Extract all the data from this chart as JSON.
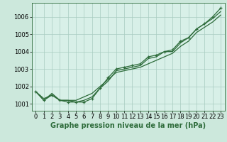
{
  "title": "Graphe pression niveau de la mer (hPa)",
  "background_color": "#cce8dc",
  "plot_bg_color": "#d8f0e8",
  "grid_color": "#a8ccc0",
  "line_color": "#2d6b3a",
  "xlim": [
    -0.5,
    23.5
  ],
  "ylim": [
    1000.6,
    1006.8
  ],
  "yticks": [
    1001,
    1002,
    1003,
    1004,
    1005,
    1006
  ],
  "xticks": [
    0,
    1,
    2,
    3,
    4,
    5,
    6,
    7,
    8,
    9,
    10,
    11,
    12,
    13,
    14,
    15,
    16,
    17,
    18,
    19,
    20,
    21,
    22,
    23
  ],
  "series": {
    "smooth": [
      1001.7,
      1001.3,
      1001.5,
      1001.2,
      1001.2,
      1001.2,
      1001.4,
      1001.6,
      1002.0,
      1002.4,
      1002.8,
      1002.9,
      1003.0,
      1003.1,
      1003.3,
      1003.5,
      1003.7,
      1003.9,
      1004.3,
      1004.6,
      1005.1,
      1005.4,
      1005.7,
      1006.1
    ],
    "line2": [
      1001.7,
      1001.2,
      1001.6,
      1001.2,
      1001.2,
      1001.1,
      1001.2,
      1001.4,
      1001.9,
      1002.3,
      1002.9,
      1003.0,
      1003.1,
      1003.2,
      1003.6,
      1003.7,
      1004.0,
      1004.0,
      1004.5,
      1004.8,
      1005.3,
      1005.6,
      1005.9,
      1006.3
    ],
    "marked": [
      1001.7,
      1001.2,
      1001.5,
      1001.2,
      1001.1,
      1001.1,
      1001.1,
      1001.3,
      1001.9,
      1002.5,
      1003.0,
      1003.1,
      1003.2,
      1003.3,
      1003.7,
      1003.8,
      1004.0,
      1004.1,
      1004.6,
      1004.8,
      1005.3,
      1005.6,
      1006.0,
      1006.5
    ]
  },
  "tick_fontsize": 6,
  "title_fontsize": 7
}
